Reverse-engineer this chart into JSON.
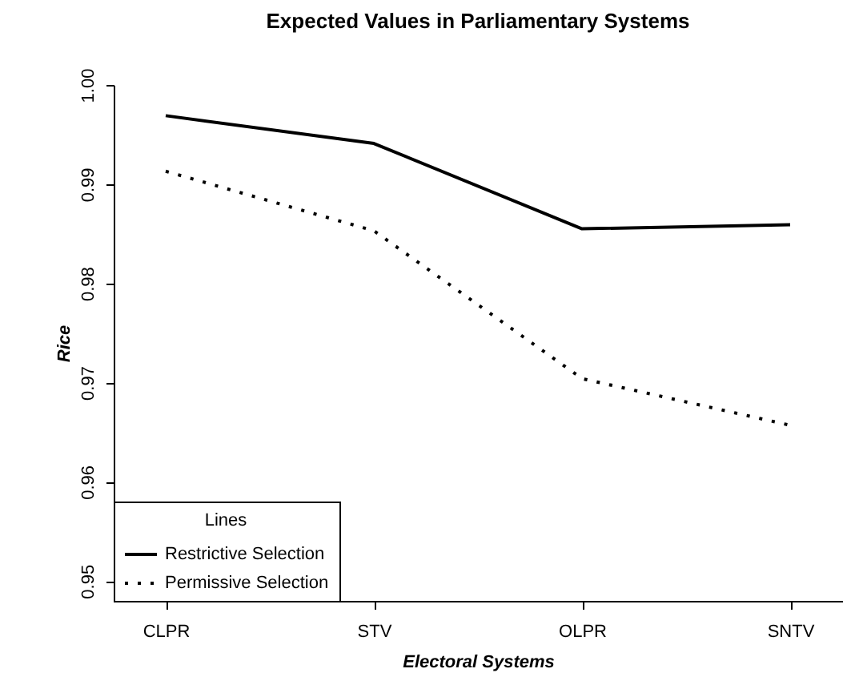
{
  "chart_data": {
    "type": "line",
    "title": "Expected Values in Parliamentary Systems",
    "xlabel": "Electoral Systems",
    "ylabel": "Rice",
    "legend_title": "Lines",
    "legend": "bottom left",
    "grid": false,
    "categories": [
      "CLPR",
      "STV",
      "OLPR",
      "SNTV"
    ],
    "ylim": [
      0.948,
      1.0
    ],
    "yticks": [
      {
        "value": 1.0,
        "label": "1.00"
      },
      0.99,
      0.98,
      0.97,
      0.96,
      0.95
    ],
    "series": [
      {
        "name": "Restrictive Selection",
        "color": "#000000",
        "line_style": "solid",
        "values": [
          0.9969,
          0.9941,
          0.9855,
          0.9859
        ]
      },
      {
        "name": "Permissive Selection",
        "color": "#000000",
        "line_style": "dotted",
        "values": [
          0.9913,
          0.9853,
          0.9704,
          0.9657
        ]
      }
    ]
  }
}
